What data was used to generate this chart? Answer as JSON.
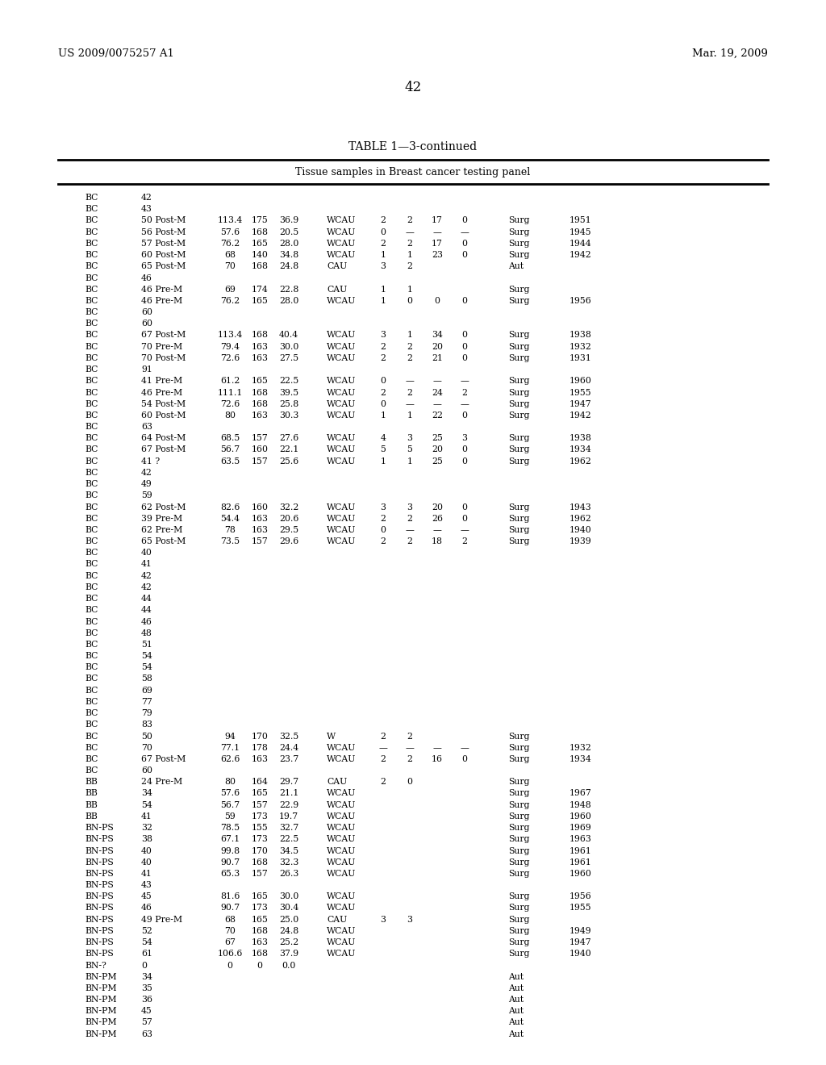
{
  "header_left": "US 2009/0075257 A1",
  "header_right": "Mar. 19, 2009",
  "page_number": "42",
  "table_title": "TABLE 1—3-continued",
  "table_subtitle": "Tissue samples in Breast cancer testing panel",
  "rows": [
    [
      "BC",
      "42",
      "",
      "",
      "",
      "",
      "",
      "",
      "",
      "",
      "",
      ""
    ],
    [
      "BC",
      "43",
      "",
      "",
      "",
      "",
      "",
      "",
      "",
      "",
      "",
      ""
    ],
    [
      "BC",
      "50 Post-M",
      "113.4",
      "175",
      "36.9",
      "WCAU",
      "2",
      "2",
      "17",
      "0",
      "Surg",
      "1951"
    ],
    [
      "BC",
      "56 Post-M",
      "57.6",
      "168",
      "20.5",
      "WCAU",
      "0",
      "—",
      "—",
      "—",
      "Surg",
      "1945"
    ],
    [
      "BC",
      "57 Post-M",
      "76.2",
      "165",
      "28.0",
      "WCAU",
      "2",
      "2",
      "17",
      "0",
      "Surg",
      "1944"
    ],
    [
      "BC",
      "60 Post-M",
      "68",
      "140",
      "34.8",
      "WCAU",
      "1",
      "1",
      "23",
      "0",
      "Surg",
      "1942"
    ],
    [
      "BC",
      "65 Post-M",
      "70",
      "168",
      "24.8",
      "CAU",
      "3",
      "2",
      "",
      "",
      "Aut",
      ""
    ],
    [
      "BC",
      "46",
      "",
      "",
      "",
      "",
      "",
      "",
      "",
      "",
      "",
      ""
    ],
    [
      "BC",
      "46 Pre-M",
      "69",
      "174",
      "22.8",
      "CAU",
      "1",
      "1",
      "",
      "",
      "Surg",
      ""
    ],
    [
      "BC",
      "46 Pre-M",
      "76.2",
      "165",
      "28.0",
      "WCAU",
      "1",
      "0",
      "0",
      "0",
      "Surg",
      "1956"
    ],
    [
      "BC",
      "60",
      "",
      "",
      "",
      "",
      "",
      "",
      "",
      "",
      "",
      ""
    ],
    [
      "BC",
      "60",
      "",
      "",
      "",
      "",
      "",
      "",
      "",
      "",
      "",
      ""
    ],
    [
      "BC",
      "67 Post-M",
      "113.4",
      "168",
      "40.4",
      "WCAU",
      "3",
      "1",
      "34",
      "0",
      "Surg",
      "1938"
    ],
    [
      "BC",
      "70 Pre-M",
      "79.4",
      "163",
      "30.0",
      "WCAU",
      "2",
      "2",
      "20",
      "0",
      "Surg",
      "1932"
    ],
    [
      "BC",
      "70 Post-M",
      "72.6",
      "163",
      "27.5",
      "WCAU",
      "2",
      "2",
      "21",
      "0",
      "Surg",
      "1931"
    ],
    [
      "BC",
      "91",
      "",
      "",
      "",
      "",
      "",
      "",
      "",
      "",
      "",
      ""
    ],
    [
      "BC",
      "41 Pre-M",
      "61.2",
      "165",
      "22.5",
      "WCAU",
      "0",
      "—",
      "—",
      "—",
      "Surg",
      "1960"
    ],
    [
      "BC",
      "46 Pre-M",
      "111.1",
      "168",
      "39.5",
      "WCAU",
      "2",
      "2",
      "24",
      "2",
      "Surg",
      "1955"
    ],
    [
      "BC",
      "54 Post-M",
      "72.6",
      "168",
      "25.8",
      "WCAU",
      "0",
      "—",
      "—",
      "—",
      "Surg",
      "1947"
    ],
    [
      "BC",
      "60 Post-M",
      "80",
      "163",
      "30.3",
      "WCAU",
      "1",
      "1",
      "22",
      "0",
      "Surg",
      "1942"
    ],
    [
      "BC",
      "63",
      "",
      "",
      "",
      "",
      "",
      "",
      "",
      "",
      "",
      ""
    ],
    [
      "BC",
      "64 Post-M",
      "68.5",
      "157",
      "27.6",
      "WCAU",
      "4",
      "3",
      "25",
      "3",
      "Surg",
      "1938"
    ],
    [
      "BC",
      "67 Post-M",
      "56.7",
      "160",
      "22.1",
      "WCAU",
      "5",
      "5",
      "20",
      "0",
      "Surg",
      "1934"
    ],
    [
      "BC",
      "41 ?",
      "63.5",
      "157",
      "25.6",
      "WCAU",
      "1",
      "1",
      "25",
      "0",
      "Surg",
      "1962"
    ],
    [
      "BC",
      "42",
      "",
      "",
      "",
      "",
      "",
      "",
      "",
      "",
      "",
      ""
    ],
    [
      "BC",
      "49",
      "",
      "",
      "",
      "",
      "",
      "",
      "",
      "",
      "",
      ""
    ],
    [
      "BC",
      "59",
      "",
      "",
      "",
      "",
      "",
      "",
      "",
      "",
      "",
      ""
    ],
    [
      "BC",
      "62 Post-M",
      "82.6",
      "160",
      "32.2",
      "WCAU",
      "3",
      "3",
      "20",
      "0",
      "Surg",
      "1943"
    ],
    [
      "BC",
      "39 Pre-M",
      "54.4",
      "163",
      "20.6",
      "WCAU",
      "2",
      "2",
      "26",
      "0",
      "Surg",
      "1962"
    ],
    [
      "BC",
      "62 Pre-M",
      "78",
      "163",
      "29.5",
      "WCAU",
      "0",
      "—",
      "—",
      "—",
      "Surg",
      "1940"
    ],
    [
      "BC",
      "65 Post-M",
      "73.5",
      "157",
      "29.6",
      "WCAU",
      "2",
      "2",
      "18",
      "2",
      "Surg",
      "1939"
    ],
    [
      "BC",
      "40",
      "",
      "",
      "",
      "",
      "",
      "",
      "",
      "",
      "",
      ""
    ],
    [
      "BC",
      "41",
      "",
      "",
      "",
      "",
      "",
      "",
      "",
      "",
      "",
      ""
    ],
    [
      "BC",
      "42",
      "",
      "",
      "",
      "",
      "",
      "",
      "",
      "",
      "",
      ""
    ],
    [
      "BC",
      "42",
      "",
      "",
      "",
      "",
      "",
      "",
      "",
      "",
      "",
      ""
    ],
    [
      "BC",
      "44",
      "",
      "",
      "",
      "",
      "",
      "",
      "",
      "",
      "",
      ""
    ],
    [
      "BC",
      "44",
      "",
      "",
      "",
      "",
      "",
      "",
      "",
      "",
      "",
      ""
    ],
    [
      "BC",
      "46",
      "",
      "",
      "",
      "",
      "",
      "",
      "",
      "",
      "",
      ""
    ],
    [
      "BC",
      "48",
      "",
      "",
      "",
      "",
      "",
      "",
      "",
      "",
      "",
      ""
    ],
    [
      "BC",
      "51",
      "",
      "",
      "",
      "",
      "",
      "",
      "",
      "",
      "",
      ""
    ],
    [
      "BC",
      "54",
      "",
      "",
      "",
      "",
      "",
      "",
      "",
      "",
      "",
      ""
    ],
    [
      "BC",
      "54",
      "",
      "",
      "",
      "",
      "",
      "",
      "",
      "",
      "",
      ""
    ],
    [
      "BC",
      "58",
      "",
      "",
      "",
      "",
      "",
      "",
      "",
      "",
      "",
      ""
    ],
    [
      "BC",
      "69",
      "",
      "",
      "",
      "",
      "",
      "",
      "",
      "",
      "",
      ""
    ],
    [
      "BC",
      "77",
      "",
      "",
      "",
      "",
      "",
      "",
      "",
      "",
      "",
      ""
    ],
    [
      "BC",
      "79",
      "",
      "",
      "",
      "",
      "",
      "",
      "",
      "",
      "",
      ""
    ],
    [
      "BC",
      "83",
      "",
      "",
      "",
      "",
      "",
      "",
      "",
      "",
      "",
      ""
    ],
    [
      "BC",
      "50",
      "94",
      "170",
      "32.5",
      "W",
      "2",
      "2",
      "",
      "",
      "Surg",
      ""
    ],
    [
      "BC",
      "70",
      "77.1",
      "178",
      "24.4",
      "WCAU",
      "—",
      "—",
      "—",
      "—",
      "Surg",
      "1932"
    ],
    [
      "BC",
      "67 Post-M",
      "62.6",
      "163",
      "23.7",
      "WCAU",
      "2",
      "2",
      "16",
      "0",
      "Surg",
      "1934"
    ],
    [
      "BC",
      "60",
      "",
      "",
      "",
      "",
      "",
      "",
      "",
      "",
      "",
      ""
    ],
    [
      "BB",
      "24 Pre-M",
      "80",
      "164",
      "29.7",
      "CAU",
      "2",
      "0",
      "",
      "",
      "Surg",
      ""
    ],
    [
      "BB",
      "34",
      "57.6",
      "165",
      "21.1",
      "WCAU",
      "",
      "",
      "",
      "",
      "Surg",
      "1967"
    ],
    [
      "BB",
      "54",
      "56.7",
      "157",
      "22.9",
      "WCAU",
      "",
      "",
      "",
      "",
      "Surg",
      "1948"
    ],
    [
      "BB",
      "41",
      "59",
      "173",
      "19.7",
      "WCAU",
      "",
      "",
      "",
      "",
      "Surg",
      "1960"
    ],
    [
      "BN-PS",
      "32",
      "78.5",
      "155",
      "32.7",
      "WCAU",
      "",
      "",
      "",
      "",
      "Surg",
      "1969"
    ],
    [
      "BN-PS",
      "38",
      "67.1",
      "173",
      "22.5",
      "WCAU",
      "",
      "",
      "",
      "",
      "Surg",
      "1963"
    ],
    [
      "BN-PS",
      "40",
      "99.8",
      "170",
      "34.5",
      "WCAU",
      "",
      "",
      "",
      "",
      "Surg",
      "1961"
    ],
    [
      "BN-PS",
      "40",
      "90.7",
      "168",
      "32.3",
      "WCAU",
      "",
      "",
      "",
      "",
      "Surg",
      "1961"
    ],
    [
      "BN-PS",
      "41",
      "65.3",
      "157",
      "26.3",
      "WCAU",
      "",
      "",
      "",
      "",
      "Surg",
      "1960"
    ],
    [
      "BN-PS",
      "43",
      "",
      "",
      "",
      "",
      "",
      "",
      "",
      "",
      "",
      ""
    ],
    [
      "BN-PS",
      "45",
      "81.6",
      "165",
      "30.0",
      "WCAU",
      "",
      "",
      "",
      "",
      "Surg",
      "1956"
    ],
    [
      "BN-PS",
      "46",
      "90.7",
      "173",
      "30.4",
      "WCAU",
      "",
      "",
      "",
      "",
      "Surg",
      "1955"
    ],
    [
      "BN-PS",
      "49 Pre-M",
      "68",
      "165",
      "25.0",
      "CAU",
      "3",
      "3",
      "",
      "",
      "Surg",
      ""
    ],
    [
      "BN-PS",
      "52",
      "70",
      "168",
      "24.8",
      "WCAU",
      "",
      "",
      "",
      "",
      "Surg",
      "1949"
    ],
    [
      "BN-PS",
      "54",
      "67",
      "163",
      "25.2",
      "WCAU",
      "",
      "",
      "",
      "",
      "Surg",
      "1947"
    ],
    [
      "BN-PS",
      "61",
      "106.6",
      "168",
      "37.9",
      "WCAU",
      "",
      "",
      "",
      "",
      "Surg",
      "1940"
    ],
    [
      "BN-?",
      "0",
      "0",
      "0",
      "0.0",
      "",
      "",
      "",
      "",
      "",
      "",
      ""
    ],
    [
      "BN-PM",
      "34",
      "",
      "",
      "",
      "",
      "",
      "",
      "",
      "",
      "Aut",
      ""
    ],
    [
      "BN-PM",
      "35",
      "",
      "",
      "",
      "",
      "",
      "",
      "",
      "",
      "Aut",
      ""
    ],
    [
      "BN-PM",
      "36",
      "",
      "",
      "",
      "",
      "",
      "",
      "",
      "",
      "Aut",
      ""
    ],
    [
      "BN-PM",
      "45",
      "",
      "",
      "",
      "",
      "",
      "",
      "",
      "",
      "Aut",
      ""
    ],
    [
      "BN-PM",
      "57",
      "",
      "",
      "",
      "",
      "",
      "",
      "",
      "",
      "Aut",
      ""
    ],
    [
      "BN-PM",
      "63",
      "",
      "",
      "",
      "",
      "",
      "",
      "",
      "",
      "Aut",
      ""
    ]
  ]
}
